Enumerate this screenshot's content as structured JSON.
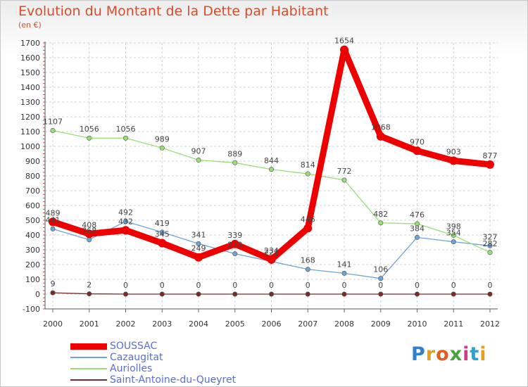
{
  "title": "Evolution du Montant de la Dette par Habitant",
  "unit": "(en €)",
  "logo": "Proxiti",
  "chart_data": {
    "type": "line",
    "title": "Evolution du Montant de la Dette par Habitant",
    "ylabel": "(en €)",
    "ylim": [
      -100,
      1700
    ],
    "yticks": [
      -100,
      0,
      100,
      200,
      300,
      400,
      500,
      600,
      700,
      800,
      900,
      1000,
      1100,
      1200,
      1300,
      1400,
      1500,
      1600,
      1700
    ],
    "grid": true,
    "legend_position": "bottom-left",
    "x": [
      "2000",
      "2001",
      "2002",
      "2003",
      "2004",
      "2005",
      "2006",
      "2007",
      "2008",
      "2009",
      "2010",
      "2011",
      "2012"
    ],
    "series": [
      {
        "name": "SOUSSAC",
        "color": "#ee0000",
        "values": [
          489,
          408,
          432,
          345,
          249,
          339,
          234,
          446,
          1654,
          1068,
          970,
          903,
          877
        ]
      },
      {
        "name": "Cazaugitat",
        "color": "#6fa3d6",
        "values": [
          441,
          368,
          492,
          419,
          341,
          273,
          221,
          168,
          141,
          106,
          384,
          354,
          327
        ]
      },
      {
        "name": "Auriolles",
        "color": "#99dd77",
        "values": [
          1107,
          1056,
          1056,
          989,
          907,
          889,
          844,
          814,
          772,
          482,
          476,
          398,
          282
        ]
      },
      {
        "name": "Saint-Antoine-du-Queyret",
        "color": "#7a2a2a",
        "values": [
          9,
          2,
          0,
          0,
          0,
          0,
          0,
          0,
          0,
          0,
          0,
          0,
          0
        ]
      }
    ]
  }
}
